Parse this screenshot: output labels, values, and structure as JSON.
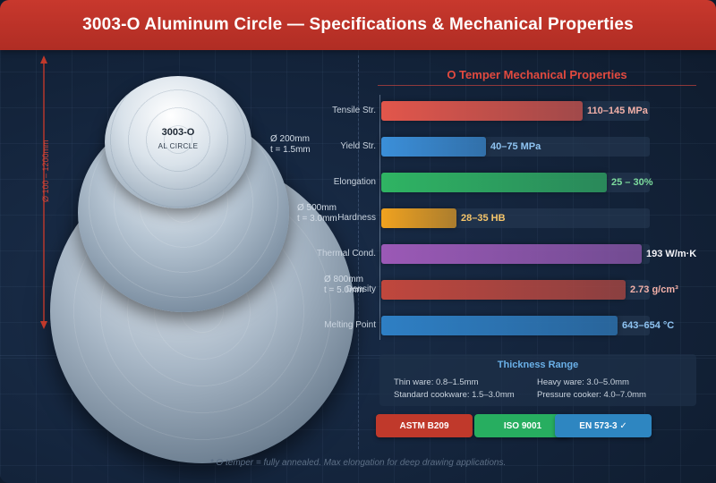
{
  "header": {
    "title": "3003-O Aluminum Circle — Specifications & Mechanical Properties"
  },
  "illustration": {
    "disc_label": "3003-O",
    "disc_sublabel": "AL CIRCLE",
    "small_disc": {
      "diameter": "Ø 200mm",
      "thickness": "t = 1.5mm"
    },
    "medium_disc": {
      "diameter": "Ø 500mm",
      "thickness": "t = 3.0mm"
    },
    "large_disc": {
      "diameter": "Ø 800mm",
      "thickness": "t = 5.0mm"
    },
    "diameter_range": "Ø 100 – 1200mm",
    "accent_color": "#d2463a"
  },
  "chart_data": {
    "type": "bar",
    "orientation": "horizontal",
    "title": "O Temper Mechanical Properties",
    "categories": [
      "Tensile Str.",
      "Yield Str.",
      "Elongation",
      "Hardness",
      "Thermal Cond.",
      "Density",
      "Melting Point"
    ],
    "value_labels": [
      "110–145 MPa",
      "40–75 MPa",
      "25 – 30%",
      "28–35 HB",
      "193 W/m·K",
      "2.73 g/cm³",
      "643–654 °C"
    ],
    "relative_values": [
      0.75,
      0.39,
      0.84,
      0.28,
      0.97,
      0.91,
      0.88
    ],
    "colors": [
      "#e2564b",
      "#3b8fd9",
      "#2fb463",
      "#f0a21f",
      "#9b59b6",
      "#c0473d",
      "#2e7fc4"
    ],
    "value_colors": [
      "#f2b0a8",
      "#8fc4f2",
      "#7ddc9e",
      "#f6c66b",
      "#f4f4f8",
      "#f2b0a8",
      "#8fc4f2"
    ],
    "xlabel": "",
    "ylabel": ""
  },
  "thickness": {
    "title": "Thickness Range",
    "items": [
      "Thin ware: 0.8–1.5mm",
      "Heavy ware: 3.0–5.0mm",
      "Standard cookware: 1.5–3.0mm",
      "Pressure cooker: 4.0–7.0mm"
    ]
  },
  "badges": [
    {
      "label": "ASTM B209",
      "color": "#c0392b"
    },
    {
      "label": "ISO 9001",
      "color": "#27ae60"
    },
    {
      "label": "EN 573-3 ✓",
      "color": "#2e86c1"
    }
  ],
  "footnote": "* O temper = fully annealed. Max elongation for deep drawing applications."
}
